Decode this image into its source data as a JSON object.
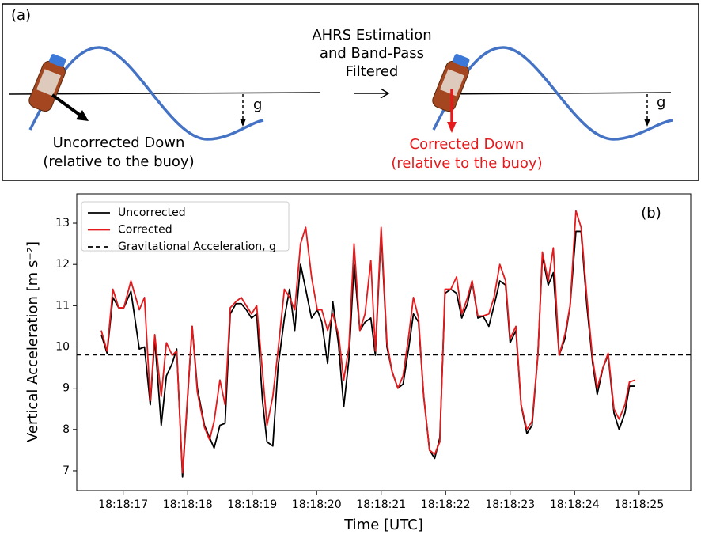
{
  "diagram": {
    "label": "(a)",
    "center_text": [
      "AHRS Estimation",
      "and Band-Pass",
      "Filtered"
    ],
    "left": {
      "caption": [
        "Uncorrected Down",
        "(relative to the buoy)"
      ],
      "g": "g"
    },
    "right": {
      "caption": [
        "Corrected Down",
        "(relative to the buoy)"
      ],
      "g": "g"
    }
  },
  "chart_data": {
    "type": "line",
    "panel_label": "(b)",
    "x_label": "Time [UTC]",
    "y_label": "Vertical Acceleration [m s⁻²]",
    "xlim": [
      16.28,
      25.8
    ],
    "ylim": [
      6.52,
      13.71
    ],
    "xticks": [
      {
        "value": 17,
        "label": "18:18:17"
      },
      {
        "value": 18,
        "label": "18:18:18"
      },
      {
        "value": 19,
        "label": "18:18:19"
      },
      {
        "value": 20,
        "label": "18:18:20"
      },
      {
        "value": 21,
        "label": "18:18:21"
      },
      {
        "value": 22,
        "label": "18:18:22"
      },
      {
        "value": 23,
        "label": "18:18:23"
      },
      {
        "value": 24,
        "label": "18:18:24"
      },
      {
        "value": 25,
        "label": "18:18:25"
      }
    ],
    "yticks": [
      7,
      8,
      9,
      10,
      11,
      12,
      13
    ],
    "grid": false,
    "legend": "upper left",
    "x": [
      16.66,
      16.75,
      16.84,
      16.93,
      17.01,
      17.12,
      17.25,
      17.33,
      17.42,
      17.49,
      17.59,
      17.67,
      17.76,
      17.83,
      17.92,
      18.07,
      18.15,
      18.26,
      18.34,
      18.41,
      18.5,
      18.58,
      18.66,
      18.75,
      18.83,
      18.91,
      18.99,
      19.07,
      19.16,
      19.23,
      19.32,
      19.4,
      19.5,
      19.58,
      19.66,
      19.75,
      19.83,
      19.92,
      20.01,
      20.08,
      20.17,
      20.25,
      20.34,
      20.42,
      20.5,
      20.58,
      20.67,
      20.75,
      20.84,
      20.91,
      21.0,
      21.09,
      21.17,
      21.26,
      21.34,
      21.43,
      21.5,
      21.58,
      21.66,
      21.75,
      21.83,
      21.91,
      21.99,
      22.08,
      22.17,
      22.25,
      22.34,
      22.41,
      22.5,
      22.58,
      22.67,
      22.75,
      22.84,
      22.93,
      23.0,
      23.09,
      23.17,
      23.26,
      23.34,
      23.43,
      23.5,
      23.59,
      23.67,
      23.76,
      23.85,
      23.93,
      24.02,
      24.1,
      24.19,
      24.28,
      24.35,
      24.44,
      24.52,
      24.61,
      24.69,
      24.78,
      24.85,
      24.94
    ],
    "series": [
      {
        "name": "Uncorrected",
        "color": "#000000",
        "values": [
          10.3,
          9.85,
          11.2,
          10.95,
          10.95,
          11.35,
          9.95,
          10.0,
          8.6,
          10.2,
          8.1,
          9.3,
          9.6,
          9.95,
          6.85,
          10.5,
          9.0,
          8.1,
          7.8,
          7.55,
          8.1,
          8.15,
          10.8,
          11.05,
          11.05,
          10.9,
          10.7,
          10.8,
          8.7,
          7.7,
          7.6,
          9.5,
          10.7,
          11.4,
          10.4,
          12.0,
          11.4,
          10.7,
          10.9,
          10.6,
          9.6,
          11.1,
          10.05,
          8.55,
          9.7,
          12.0,
          10.4,
          10.6,
          10.7,
          9.8,
          12.8,
          10.0,
          9.4,
          9.0,
          9.1,
          10.0,
          10.8,
          10.6,
          8.8,
          7.5,
          7.3,
          7.8,
          11.3,
          11.4,
          11.3,
          10.7,
          11.05,
          11.6,
          10.7,
          10.75,
          10.5,
          11.0,
          11.6,
          11.5,
          10.1,
          10.4,
          8.6,
          7.9,
          8.1,
          9.8,
          12.2,
          11.5,
          11.8,
          9.8,
          10.2,
          11.0,
          12.8,
          12.8,
          11.0,
          9.6,
          8.85,
          9.5,
          9.8,
          8.4,
          8.0,
          8.4,
          9.05,
          9.05
        ]
      },
      {
        "name": "Corrected",
        "color": "#e41a1c",
        "values": [
          10.4,
          9.9,
          11.4,
          10.95,
          10.95,
          11.6,
          10.9,
          11.2,
          8.7,
          10.3,
          8.8,
          10.1,
          9.8,
          9.9,
          6.95,
          10.5,
          8.9,
          8.05,
          7.75,
          8.2,
          9.2,
          8.6,
          10.95,
          11.1,
          11.2,
          11.0,
          10.8,
          11.0,
          9.4,
          8.1,
          8.8,
          9.9,
          11.4,
          11.2,
          10.9,
          12.5,
          12.9,
          11.7,
          10.9,
          10.9,
          10.4,
          10.8,
          10.3,
          9.2,
          10.0,
          12.5,
          10.4,
          10.8,
          12.1,
          9.9,
          12.9,
          10.1,
          9.4,
          9.0,
          9.3,
          10.3,
          11.2,
          10.7,
          8.8,
          7.5,
          7.4,
          7.7,
          11.4,
          11.4,
          11.7,
          10.8,
          11.2,
          11.6,
          10.75,
          10.75,
          10.8,
          11.2,
          12.0,
          11.6,
          10.2,
          10.5,
          8.6,
          8.0,
          8.2,
          9.8,
          12.3,
          11.6,
          12.4,
          9.8,
          10.3,
          11.0,
          13.3,
          12.9,
          11.2,
          9.7,
          9.0,
          9.5,
          9.85,
          8.5,
          8.25,
          8.6,
          9.15,
          9.2
        ]
      }
    ],
    "reference_line": {
      "name": "Gravitational Acceleration, g",
      "value": 9.81,
      "color": "#000000",
      "dashed": true
    }
  }
}
